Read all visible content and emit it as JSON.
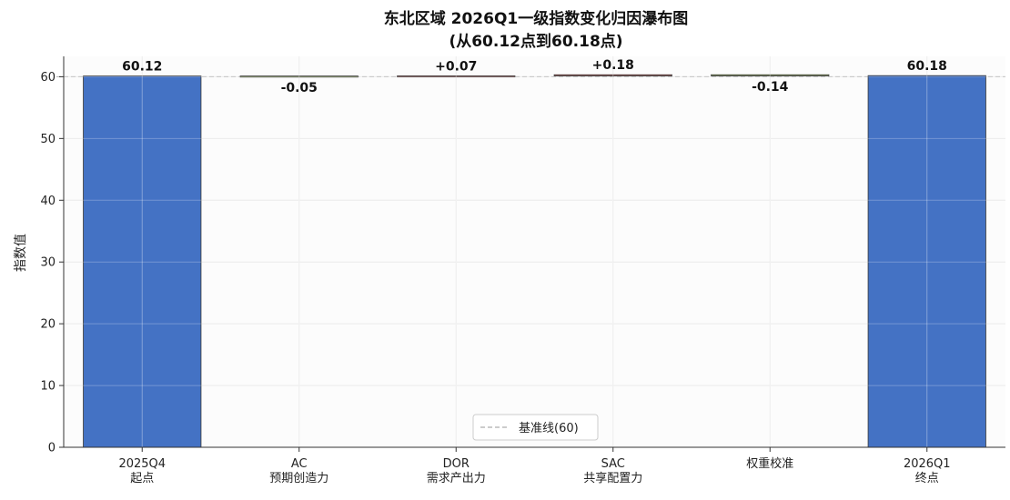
{
  "chart_data": {
    "type": "bar",
    "subtype": "waterfall",
    "title_line1": "东北区域 2026Q1一级指数变化归因瀑布图",
    "title_line2": "(从60.12点到60.18点)",
    "ylabel": "指数值",
    "xlabel": "",
    "ylim": [
      0,
      63.3
    ],
    "yticks": [
      0,
      10,
      20,
      30,
      40,
      50,
      60
    ],
    "grid": true,
    "legend_position": "bottom-center",
    "categories": [
      [
        "2025Q4",
        "起点"
      ],
      [
        "AC",
        "预期创造力"
      ],
      [
        "DOR",
        "需求产出力"
      ],
      [
        "SAC",
        "共享配置力"
      ],
      [
        "权重校准"
      ],
      [
        "2026Q1",
        "终点"
      ]
    ],
    "steps": [
      {
        "kind": "total",
        "value": 60.12,
        "label": "60.12"
      },
      {
        "kind": "delta",
        "value": -0.05,
        "label": "-0.05"
      },
      {
        "kind": "delta",
        "value": 0.07,
        "label": "+0.07"
      },
      {
        "kind": "delta",
        "value": 0.18,
        "label": "+0.18"
      },
      {
        "kind": "delta",
        "value": -0.14,
        "label": "-0.14"
      },
      {
        "kind": "total",
        "value": 60.18,
        "label": "60.18"
      }
    ],
    "baseline": {
      "value": 60,
      "legend_label": "基准线(60)"
    },
    "colors": {
      "total": "#4472c4",
      "increase": "#c0504d",
      "decrease": "#9bbb59",
      "baseline": "#bbbbbb",
      "grid": "#e6e6e6",
      "axis": "#333333"
    }
  }
}
